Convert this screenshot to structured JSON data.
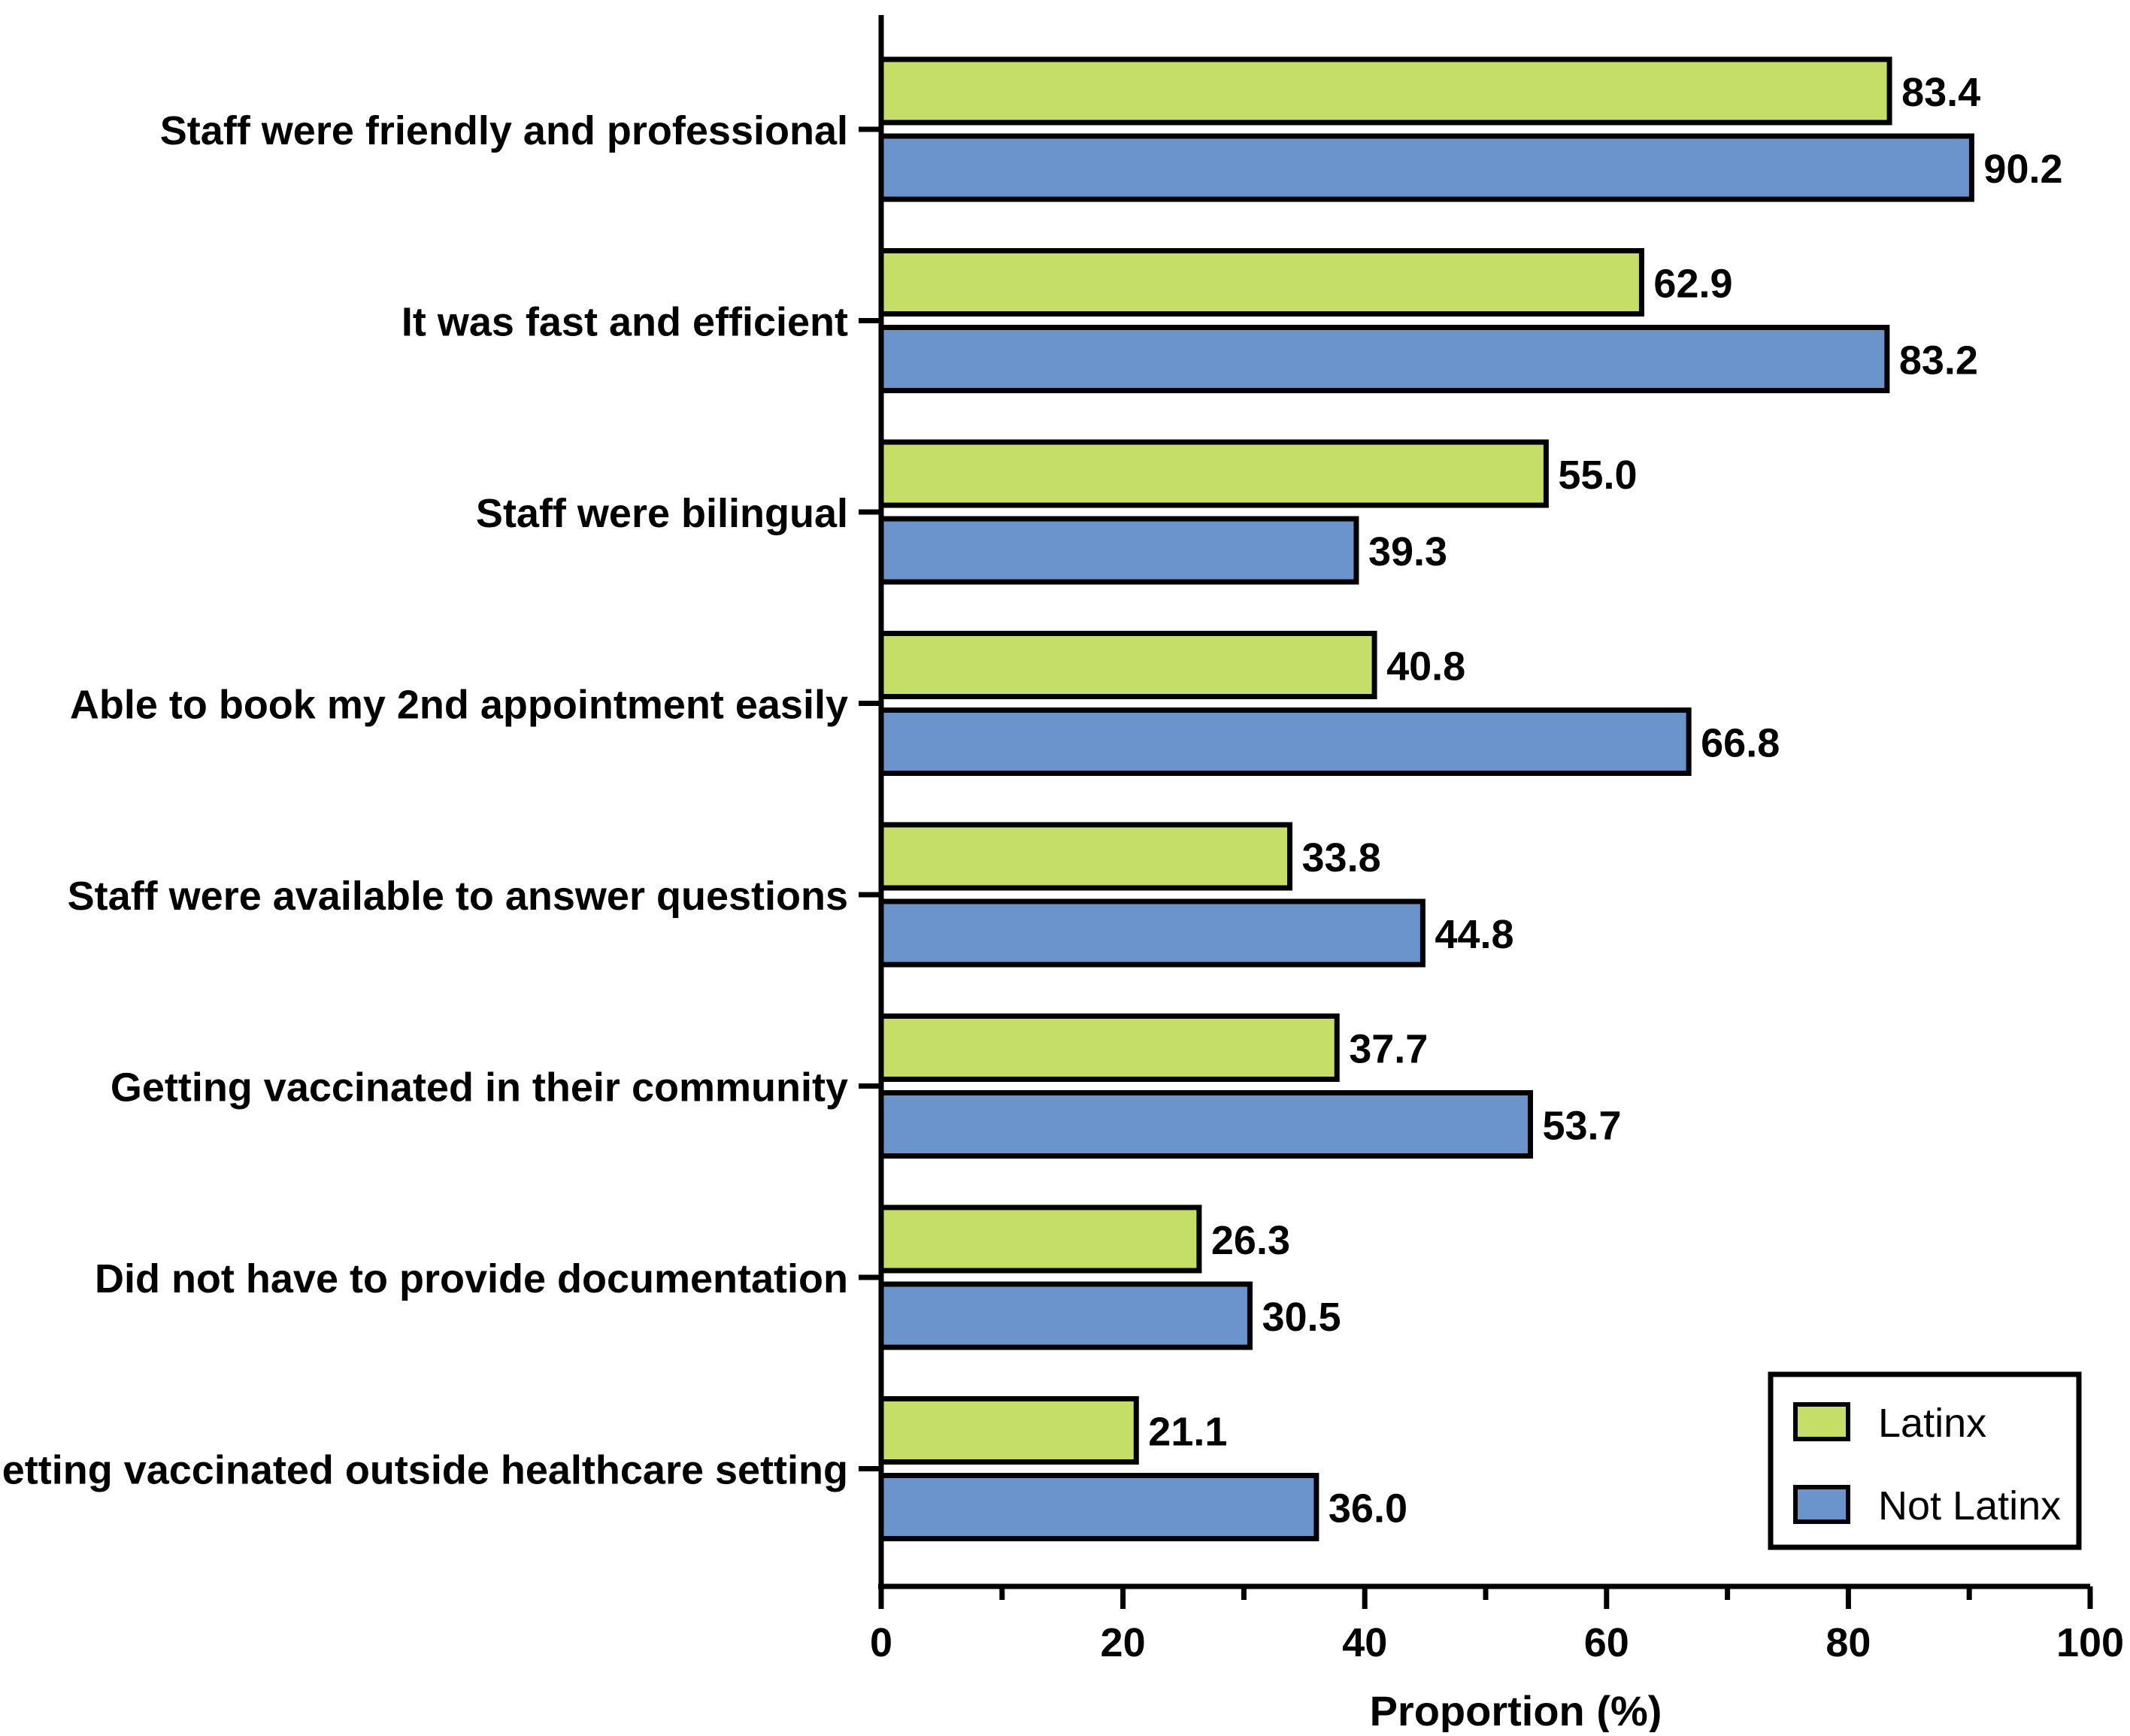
{
  "chart_data": {
    "type": "bar",
    "orientation": "horizontal",
    "title": "",
    "xlabel": "Proportion (%)",
    "ylabel": "",
    "xlim": [
      0,
      100
    ],
    "xticks": [
      "0",
      "20",
      "40",
      "60",
      "80",
      "100"
    ],
    "grid": false,
    "legend_position": "bottom-right",
    "categories": [
      "Staff were friendly and professional",
      "It was fast and efficient",
      "Staff were bilingual",
      "Able to book my 2nd appointment easily",
      "Staff were available to answer questions",
      "Getting vaccinated in their community",
      "Did not have to provide documentation",
      "Getting vaccinated outside healthcare setting"
    ],
    "series": [
      {
        "name": "Latinx",
        "color": "#c5de68",
        "values": [
          83.4,
          62.9,
          55.0,
          40.8,
          33.8,
          37.7,
          26.3,
          21.1
        ],
        "labels": [
          "83.4",
          "62.9",
          "55.0",
          "40.8",
          "33.8",
          "37.7",
          "26.3",
          "21.1"
        ]
      },
      {
        "name": "Not Latinx",
        "color": "#6b93cb",
        "values": [
          90.2,
          83.2,
          39.3,
          66.8,
          44.8,
          53.7,
          30.5,
          36.0
        ],
        "labels": [
          "90.2",
          "83.2",
          "39.3",
          "66.8",
          "44.8",
          "53.7",
          "30.5",
          "36.0"
        ]
      }
    ]
  }
}
